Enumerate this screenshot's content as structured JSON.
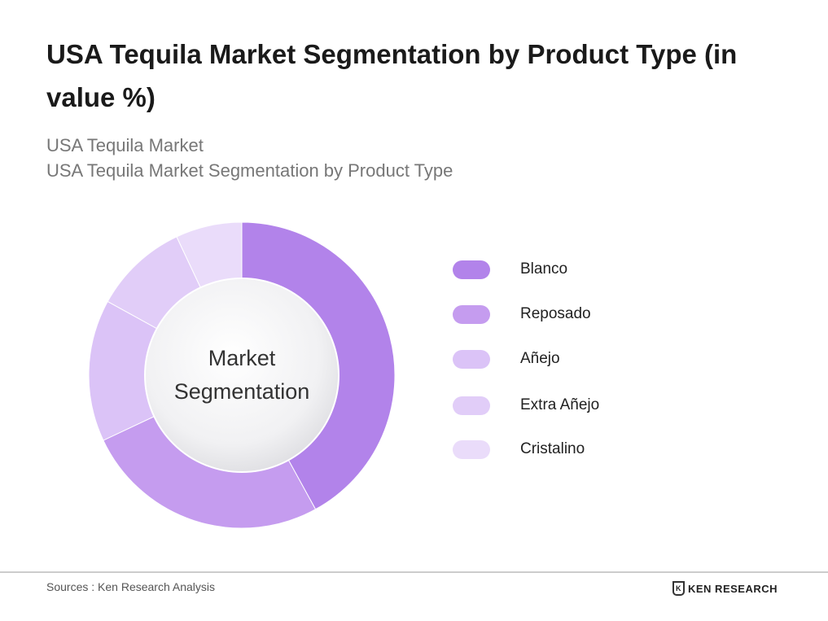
{
  "title": "USA Tequila Market Segmentation by Product Type (in value %)",
  "subtitles": [
    "USA Tequila Market",
    "USA Tequila Market Segmentation by Product Type"
  ],
  "chart_data": {
    "type": "pie",
    "variant": "donut",
    "center_label": [
      "Market",
      "Segmentation"
    ],
    "categories": [
      "Blanco",
      "Reposado",
      "Añejo",
      "Extra Añejo",
      "Cristalino"
    ],
    "values": [
      42,
      26,
      15,
      10,
      7
    ],
    "unit": "%",
    "colors": [
      "#b283ea",
      "#c59cef",
      "#dbc3f7",
      "#e1cdf8",
      "#eadcfa"
    ],
    "legend_placement": "right"
  },
  "footer": {
    "source": "Sources : Ken Research Analysis",
    "logo": "KEN RESEARCH"
  }
}
